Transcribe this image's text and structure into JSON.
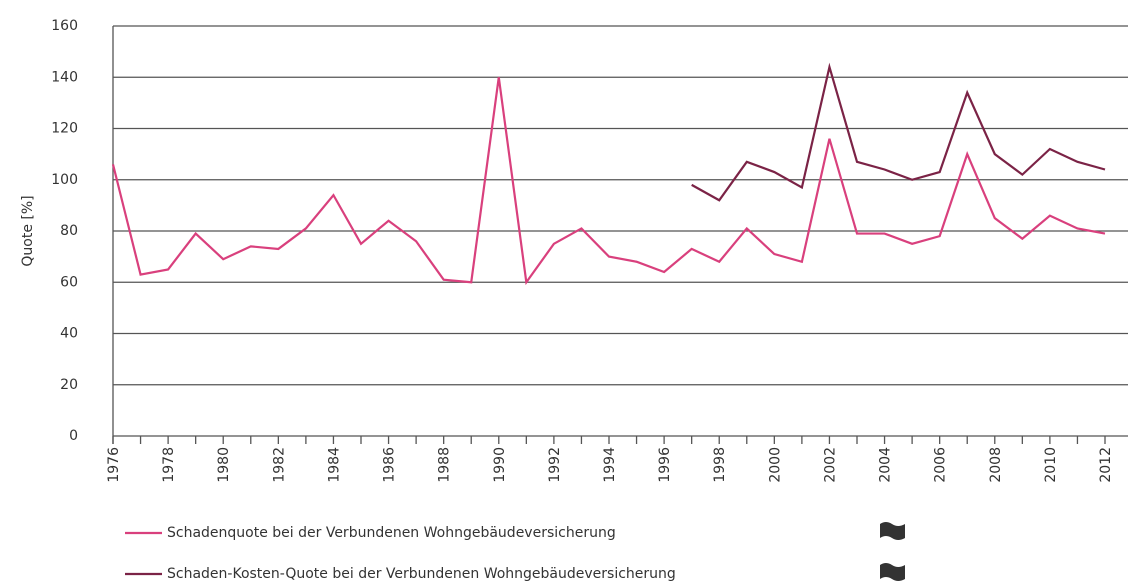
{
  "chart_data": {
    "type": "line",
    "y_label": "Quote [%]",
    "categories": [
      "1976",
      null,
      "1978",
      null,
      "1980",
      null,
      "1982",
      null,
      "1984",
      null,
      "1986",
      null,
      "1988",
      null,
      "1990",
      null,
      "1992",
      null,
      "1994",
      null,
      "1996",
      null,
      "1998",
      null,
      "2000",
      null,
      "2002",
      null,
      "2004",
      null,
      "2006",
      null,
      "2008",
      null,
      "2010",
      null,
      "2012"
    ],
    "series": [
      {
        "name": "Schadenquote bei der  Verbundenen Wohngebäudeversicherung",
        "color": "#d9407d",
        "values": [
          106,
          63,
          65,
          79,
          69,
          74,
          73,
          81,
          94,
          75,
          84,
          76,
          61,
          60,
          140,
          60,
          75,
          81,
          70,
          68,
          64,
          73,
          68,
          81,
          71,
          68,
          116,
          79,
          79,
          75,
          78,
          110,
          85,
          77,
          86,
          81,
          79
        ]
      },
      {
        "name": "Schaden-Kosten-Quote bei der Verbundenen Wohngebäudeversicherung",
        "color": "#7b2346",
        "values": [
          null,
          null,
          null,
          null,
          null,
          null,
          null,
          null,
          null,
          null,
          null,
          null,
          null,
          null,
          null,
          null,
          null,
          null,
          null,
          null,
          null,
          98,
          92,
          107,
          103,
          97,
          144,
          107,
          104,
          100,
          103,
          134,
          110,
          102,
          112,
          107,
          104
        ]
      }
    ],
    "ylim": [
      0,
      160
    ],
    "yticks": [
      0,
      20,
      40,
      60,
      80,
      100,
      120,
      140,
      160
    ],
    "grid": true
  }
}
